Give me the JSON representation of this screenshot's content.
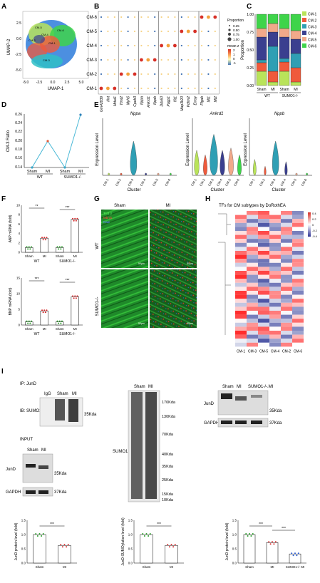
{
  "panels": {
    "A": "A",
    "B": "B",
    "C": "C",
    "D": "D",
    "E": "E",
    "F": "F",
    "G": "G",
    "H": "H",
    "I": "I"
  },
  "colors": {
    "cm1": "#b9e35a",
    "cm2": "#ef5a3c",
    "cm3": "#2f9fb4",
    "cm4": "#3a3f8f",
    "cm5": "#f1a98a",
    "cm6": "#3fd44a",
    "umap_bg": "#4c8fe0",
    "dot_red": "#d73027",
    "dot_blue": "#4575b4",
    "line": "#49b8d6",
    "bar_green": "#2ca02c",
    "bar_red": "#d62728"
  },
  "panelA": {
    "xlabel": "UMAP-1",
    "ylabel": "UMAP-2",
    "xticks": [
      "-5.0",
      "-2.5",
      "0.0",
      "2.5",
      "5.0"
    ],
    "yticks": [
      "2.5",
      "0.0",
      "-2.5",
      "-5.0"
    ],
    "labels": [
      "CM-5",
      "CM-2",
      "CM-4",
      "CM-6",
      "CM-1",
      "CM-3"
    ]
  },
  "panelB": {
    "clusters": [
      "CM-6",
      "CM-5",
      "CM-4",
      "CM-3",
      "CM-2",
      "CM-1"
    ],
    "genes": [
      "Gm42839",
      "Nnt",
      "Mdat1",
      "Ttmt2",
      "Myh6",
      "Cpeb3",
      "Nppa",
      "Ankrd1",
      "Nppb",
      "Ddx60",
      "Pqgp1",
      "Ifit1",
      "Map3k20",
      "Pdlim2",
      "Emsy",
      "Plgab",
      "Mt1",
      "Mt2"
    ],
    "legend_prop_title": "Proportion",
    "legend_prop": [
      "0.25",
      "0.50",
      "0.75",
      "1.00"
    ],
    "legend_mean_title": "mean z",
    "legend_mean": [
      "2",
      "1",
      "0",
      "-1"
    ]
  },
  "chart_data": [
    {
      "type": "bar",
      "panel": "C",
      "title": "",
      "ylabel": "Proportion",
      "categories": [
        "Sham",
        "MI",
        "Sham",
        "MI"
      ],
      "groups": [
        "WT",
        "SUMO1-/-"
      ],
      "series": [
        {
          "name": "CM-1",
          "values": [
            0.2,
            0.05,
            0.2,
            0.05
          ]
        },
        {
          "name": "CM-2",
          "values": [
            0.12,
            0.15,
            0.13,
            0.2
          ]
        },
        {
          "name": "CM-3",
          "values": [
            0.04,
            0.35,
            0.05,
            0.2
          ]
        },
        {
          "name": "CM-4",
          "values": [
            0.32,
            0.2,
            0.3,
            0.2
          ]
        },
        {
          "name": "CM-5",
          "values": [
            0.12,
            0.12,
            0.12,
            0.12
          ]
        },
        {
          "name": "CM-6",
          "values": [
            0.2,
            0.13,
            0.2,
            0.23
          ]
        }
      ],
      "yticks": [
        "1.00",
        "0.75",
        "0.50",
        "0.25",
        "0.00"
      ]
    },
    {
      "type": "line",
      "panel": "D",
      "ylabel": "CM-3 Ratio",
      "categories": [
        "Sham",
        "MI",
        "Sham",
        "MI"
      ],
      "values": [
        0.14,
        0.2,
        0.14,
        0.26
      ],
      "yticks": [
        "0.26",
        "0.24",
        "0.22",
        "0.20",
        "0.18",
        "0.16",
        "0.14"
      ],
      "ylim": [
        0.14,
        0.26
      ],
      "groups": [
        "WT",
        "SUMO1-/-"
      ]
    },
    {
      "type": "violin",
      "panel": "E",
      "panels": [
        {
          "gene": "Nppa"
        },
        {
          "gene": "Ankrd1"
        },
        {
          "gene": "Nppb"
        }
      ],
      "categories": [
        "CM-1",
        "CM-2",
        "CM-3",
        "CM-4",
        "CM-5",
        "CM-6"
      ],
      "xlabel": "Cluster",
      "ylabel": "Expression Level"
    },
    {
      "type": "bar",
      "panel": "F-top",
      "ylabel": "ANP mRNA (fold)",
      "categories": [
        "Sham",
        "MI",
        "Sham",
        "MI"
      ],
      "values": [
        1.0,
        3.0,
        1.0,
        7.0
      ],
      "yticks": [
        "10",
        "8",
        "6",
        "4",
        "2",
        "0"
      ],
      "ylim": [
        0,
        10
      ],
      "sig": [
        "**",
        "***"
      ]
    },
    {
      "type": "bar",
      "panel": "F-bottom",
      "ylabel": "BNP mRNA (fold)",
      "categories": [
        "Sham",
        "MI",
        "Sham",
        "MI"
      ],
      "values": [
        1.0,
        4.5,
        1.0,
        9.0
      ],
      "yticks": [
        "15",
        "10",
        "5",
        "0"
      ],
      "ylim": [
        0,
        15
      ],
      "sig": [
        "***",
        "***"
      ]
    },
    {
      "type": "bar",
      "panel": "I-1",
      "ylabel": "JunD protein level (fold)",
      "categories": [
        "Sham",
        "MI"
      ],
      "values": [
        1.0,
        0.62
      ],
      "yticks": [
        "1.5",
        "1.0",
        "0.5",
        "0.0"
      ],
      "ylim": [
        0,
        1.5
      ],
      "sig": [
        "***"
      ]
    },
    {
      "type": "bar",
      "panel": "I-2",
      "ylabel": "JunD-SUMOylation level (fold)",
      "categories": [
        "Sham",
        "MI"
      ],
      "values": [
        1.0,
        0.62
      ],
      "yticks": [
        "1.5",
        "1.0",
        "0.5",
        "0.0"
      ],
      "ylim": [
        0,
        1.5
      ],
      "sig": [
        "***"
      ]
    },
    {
      "type": "bar",
      "panel": "I-3",
      "ylabel": "JunD protein level (fold)",
      "categories": [
        "Sham",
        "MI",
        "SUMO1-/- MI"
      ],
      "values": [
        1.0,
        0.72,
        0.32
      ],
      "yticks": [
        "1.5",
        "1.0",
        "0.5",
        "0.0"
      ],
      "ylim": [
        0,
        1.5
      ],
      "sig": [
        "***",
        "***"
      ]
    }
  ],
  "panelG": {
    "sham": "Sham",
    "mi": "MI",
    "wt": "WT",
    "ko": "SUMO1-/-",
    "stain1": "Tcnt 2",
    "stain2": "Mbnl1",
    "stain3": "Dapi",
    "scale": "50μm"
  },
  "panelH": {
    "title": "TFs for CM subtypes by DoRothEA",
    "columns": [
      "CM-1",
      "CM-3",
      "CM-5",
      "CM-4",
      "CM-2",
      "CM-6"
    ],
    "legend": [
      "0.4",
      "0.2",
      "0",
      "-0.2",
      "-0.4"
    ]
  },
  "panelI": {
    "ip": "IP: JunD",
    "ib": "IB: SUMO1",
    "input": "INPUT",
    "lanes1": [
      "IgG",
      "Sham",
      "MI"
    ],
    "lanes2": [
      "Sham",
      "MI"
    ],
    "lanes3": [
      "Sham",
      "MI"
    ],
    "lanes4": [
      "Sham",
      "MI",
      "SUMO1-/-.MI"
    ],
    "junD": "JunD",
    "gapdh": "GAPDH",
    "sumo1": "SUMO1",
    "kda35": "35Kda",
    "kda37": "37Kda",
    "markers": [
      "170Kda",
      "130Kda",
      "70Kda",
      "40Kda",
      "35Kda",
      "25Kda",
      "15Kda",
      "10Kda"
    ]
  },
  "axes": {
    "wt": "WT",
    "ko": "SUMO1-/-",
    "sham": "Sham",
    "mi": "MI",
    "cluster": "Cluster"
  }
}
